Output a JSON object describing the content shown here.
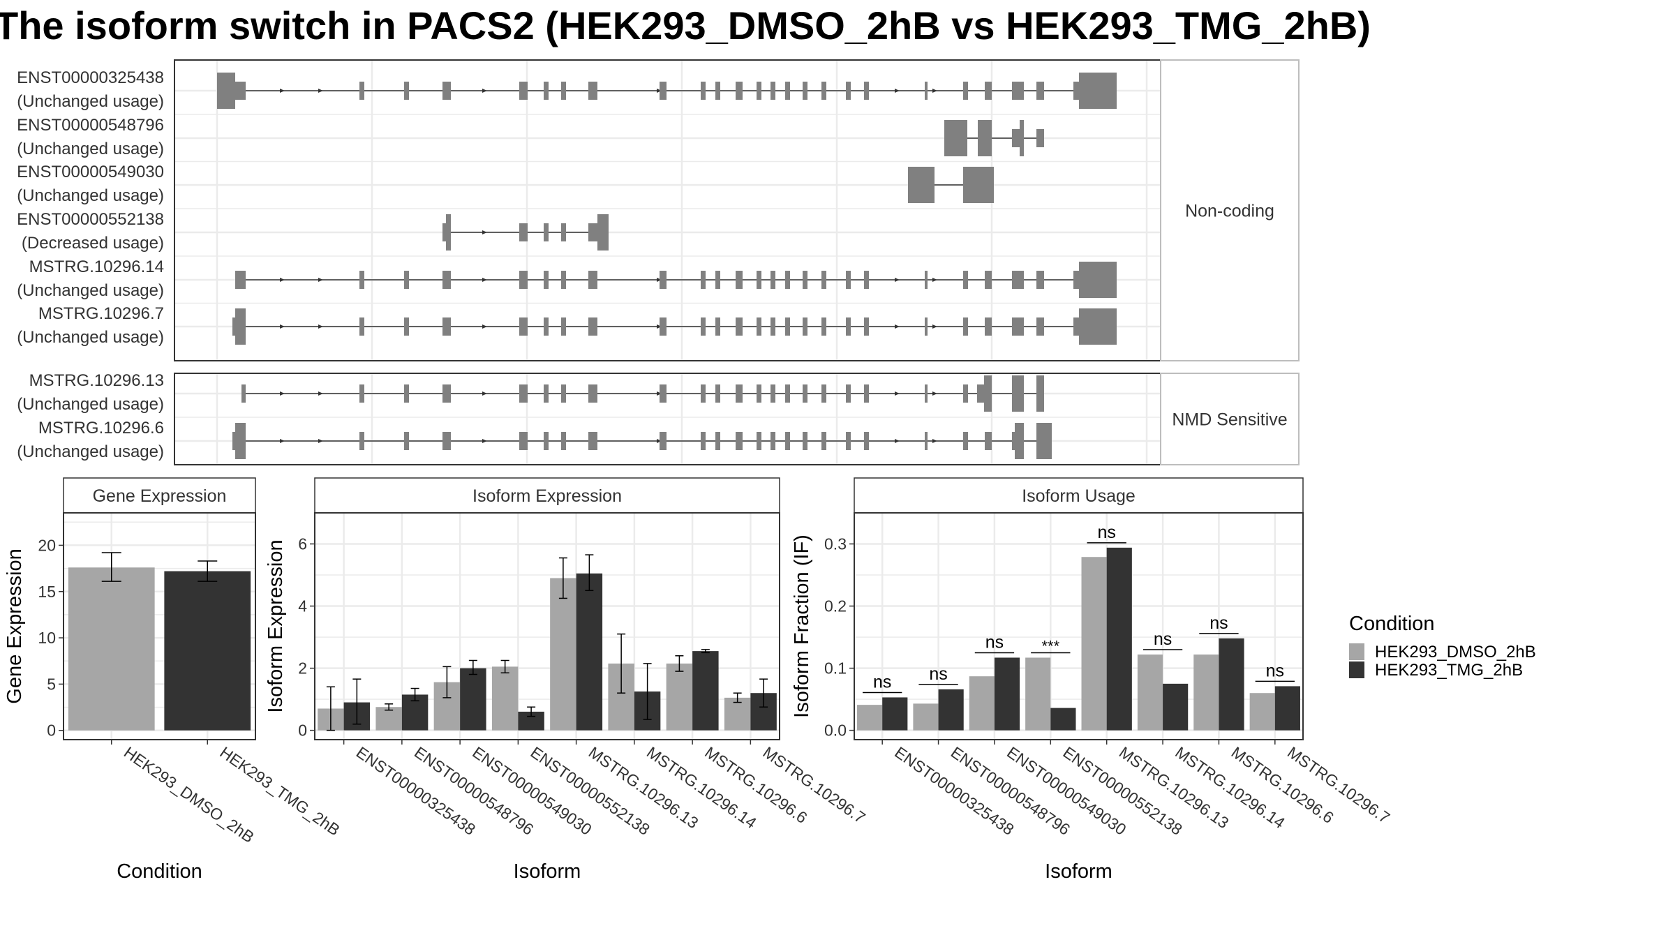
{
  "title": "The isoform switch in PACS2 (HEK293_DMSO_2hB vs HEK293_TMG_2hB)",
  "colors": {
    "dmso": "#a6a6a6",
    "tmg": "#333333",
    "exon": "#808080",
    "grid": "#ebebeb",
    "panel_border": "#333333",
    "strip_border": "#bdbdbd"
  },
  "transcripts": {
    "groups": [
      {
        "label": "Non-coding",
        "isoforms": [
          {
            "name": "ENST00000325438",
            "status": "(Unchanged usage)"
          },
          {
            "name": "ENST00000548796",
            "status": "(Unchanged usage)"
          },
          {
            "name": "ENST00000549030",
            "status": "(Unchanged usage)"
          },
          {
            "name": "ENST00000552138",
            "status": "(Decreased usage)"
          },
          {
            "name": "MSTRG.10296.14",
            "status": "(Unchanged usage)"
          },
          {
            "name": "MSTRG.10296.7",
            "status": "(Unchanged usage)"
          }
        ]
      },
      {
        "label": "NMD Sensitive",
        "isoforms": [
          {
            "name": "MSTRG.10296.13",
            "status": "(Unchanged usage)"
          },
          {
            "name": "MSTRG.10296.6",
            "status": "(Unchanged usage)"
          }
        ]
      }
    ]
  },
  "legend": {
    "title": "Condition",
    "items": [
      {
        "label": "HEK293_DMSO_2hB",
        "color": "#a6a6a6"
      },
      {
        "label": "HEK293_TMG_2hB",
        "color": "#333333"
      }
    ]
  },
  "chart_data": [
    {
      "type": "bar",
      "title": "Gene Expression",
      "xlabel": "Condition",
      "ylabel": "Gene Expression",
      "categories": [
        "HEK293_DMSO_2hB",
        "HEK293_TMG_2hB"
      ],
      "values": [
        17.6,
        17.2
      ],
      "errors": [
        [
          16.1,
          19.2
        ],
        [
          16.1,
          18.3
        ]
      ],
      "ylim": [
        -1,
        23.5
      ],
      "yticks": [
        0,
        5,
        10,
        15,
        20
      ]
    },
    {
      "type": "bar",
      "title": "Isoform Expression",
      "xlabel": "Isoform",
      "ylabel": "Isoform Expression",
      "categories": [
        "ENST00000325438",
        "ENST00000548796",
        "ENST00000549030",
        "ENST00000552138",
        "MSTRG.10296.13",
        "MSTRG.10296.14",
        "MSTRG.10296.6",
        "MSTRG.10296.7"
      ],
      "ylim": [
        -0.3,
        7.0
      ],
      "yticks": [
        0,
        2,
        4,
        6
      ],
      "series": [
        {
          "name": "HEK293_DMSO_2hB",
          "values": [
            0.7,
            0.75,
            1.55,
            2.05,
            4.9,
            2.15,
            2.15,
            1.05
          ],
          "errors": [
            [
              0.0,
              1.4
            ],
            [
              0.65,
              0.85
            ],
            [
              1.05,
              2.05
            ],
            [
              1.85,
              2.25
            ],
            [
              4.25,
              5.55
            ],
            [
              1.2,
              3.1
            ],
            [
              1.9,
              2.4
            ],
            [
              0.9,
              1.2
            ]
          ]
        },
        {
          "name": "HEK293_TMG_2hB",
          "values": [
            0.9,
            1.15,
            2.0,
            0.6,
            5.05,
            1.25,
            2.55,
            1.2
          ],
          "errors": [
            [
              0.2,
              1.65
            ],
            [
              0.95,
              1.35
            ],
            [
              1.8,
              2.25
            ],
            [
              0.45,
              0.75
            ],
            [
              4.5,
              5.65
            ],
            [
              0.35,
              2.15
            ],
            [
              2.5,
              2.6
            ],
            [
              0.75,
              1.65
            ]
          ]
        }
      ]
    },
    {
      "type": "bar",
      "title": "Isoform Usage",
      "xlabel": "Isoform",
      "ylabel": "Isoform Fraction (IF)",
      "categories": [
        "ENST00000325438",
        "ENST00000548796",
        "ENST00000549030",
        "ENST00000552138",
        "MSTRG.10296.13",
        "MSTRG.10296.14",
        "MSTRG.10296.6",
        "MSTRG.10296.7"
      ],
      "ylim": [
        -0.015,
        0.35
      ],
      "yticks": [
        0.0,
        0.1,
        0.2,
        0.3
      ],
      "ytick_labels": [
        "0.0",
        "0.1",
        "0.2",
        "0.3"
      ],
      "series": [
        {
          "name": "HEK293_DMSO_2hB",
          "values": [
            0.041,
            0.043,
            0.087,
            0.117,
            0.279,
            0.122,
            0.122,
            0.06
          ]
        },
        {
          "name": "HEK293_TMG_2hB",
          "values": [
            0.053,
            0.066,
            0.117,
            0.036,
            0.294,
            0.075,
            0.148,
            0.071
          ]
        }
      ],
      "significance": [
        "ns",
        "ns",
        "ns",
        "***",
        "ns",
        "ns",
        "ns",
        "ns"
      ]
    }
  ]
}
